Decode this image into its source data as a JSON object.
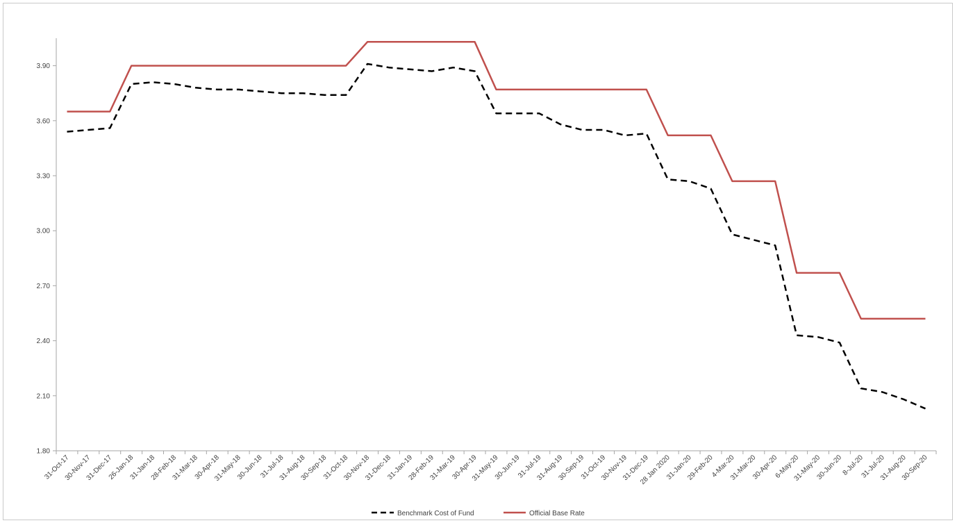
{
  "chart_data": {
    "type": "line",
    "title": "",
    "xlabel": "",
    "ylabel": "",
    "ylim": [
      1.8,
      4.05
    ],
    "yticks": [
      "1.80",
      "2.10",
      "2.40",
      "2.70",
      "3.00",
      "3.30",
      "3.60",
      "3.90"
    ],
    "grid": false,
    "legend_position": "bottom",
    "categories": [
      "31-Oct-17",
      "30-Nov-17",
      "31-Dec-17",
      "26-Jan-18",
      "31-Jan-18",
      "28-Feb-18",
      "31-Mar-18",
      "30-Apr-18",
      "31-May-18",
      "30-Jun-18",
      "31-Jul-18",
      "31-Aug-18",
      "30-Sep-18",
      "31-Oct-18",
      "30-Nov-18",
      "31-Dec-18",
      "31-Jan-19",
      "28-Feb-19",
      "31-Mar-19",
      "30-Apr-19",
      "31-May-19",
      "30-Jun-19",
      "31-Jul-19",
      "31-Aug-19",
      "30-Sep-19",
      "31-Oct-19",
      "30-Nov-19",
      "31-Dec-19",
      "28 Jan 2020",
      "31-Jan-20",
      "29-Feb-20",
      "4-Mar-20",
      "31-Mar-20",
      "30-Apr-20",
      "6-May-20",
      "31-May-20",
      "30-Jun-20",
      "8-Jul-20",
      "31-Jul-20",
      "31-Aug-20",
      "30-Sep-20"
    ],
    "series": [
      {
        "name": "Benchmark Cost of Fund",
        "color": "#000000",
        "dashed": true,
        "values": [
          3.54,
          3.55,
          3.56,
          3.8,
          3.81,
          3.8,
          3.78,
          3.77,
          3.77,
          3.76,
          3.75,
          3.75,
          3.74,
          3.74,
          3.91,
          3.89,
          3.88,
          3.87,
          3.89,
          3.87,
          3.64,
          3.64,
          3.64,
          3.58,
          3.55,
          3.55,
          3.52,
          3.53,
          3.28,
          3.27,
          3.23,
          2.98,
          2.95,
          2.92,
          2.43,
          2.42,
          2.39,
          2.14,
          2.12,
          2.08,
          2.03
        ]
      },
      {
        "name": "Official Base Rate",
        "color": "#c0504d",
        "dashed": false,
        "values": [
          3.65,
          3.65,
          3.65,
          3.9,
          3.9,
          3.9,
          3.9,
          3.9,
          3.9,
          3.9,
          3.9,
          3.9,
          3.9,
          3.9,
          4.03,
          4.03,
          4.03,
          4.03,
          4.03,
          4.03,
          3.77,
          3.77,
          3.77,
          3.77,
          3.77,
          3.77,
          3.77,
          3.77,
          3.52,
          3.52,
          3.52,
          3.27,
          3.27,
          3.27,
          2.77,
          2.77,
          2.77,
          2.52,
          2.52,
          2.52,
          2.52
        ]
      }
    ]
  }
}
